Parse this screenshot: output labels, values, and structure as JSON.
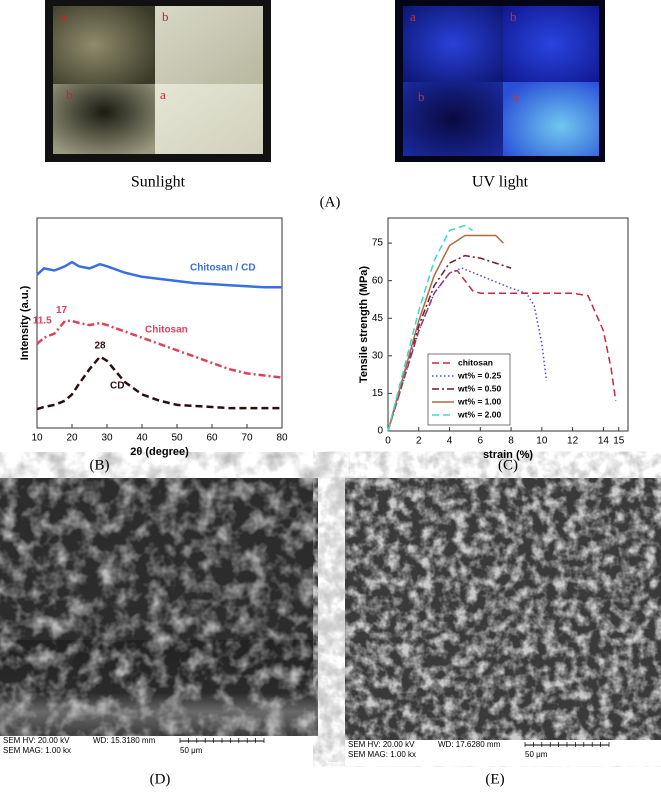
{
  "photo_panel": {
    "label": "(A)",
    "photos": [
      {
        "caption": "Sunlight",
        "labels": [
          "a",
          "b",
          "b",
          "a"
        ]
      },
      {
        "caption": "UV light",
        "labels": [
          "a",
          "b",
          "b",
          "a"
        ]
      }
    ]
  },
  "chart_data": [
    {
      "type": "line",
      "panel_label": "(B)",
      "x_label": "2θ (degree)",
      "y_label": "Intensity (a.u.)",
      "xlim": [
        10,
        80
      ],
      "xticks": [
        10,
        20,
        30,
        40,
        50,
        60,
        70,
        80
      ],
      "ylim": [
        0,
        100
      ],
      "series": [
        {
          "name": "Chitosan / CD",
          "color": "#3a6fe0",
          "style": "solid",
          "x": [
            10,
            12,
            15,
            18,
            20,
            22,
            25,
            28,
            30,
            35,
            40,
            45,
            50,
            55,
            60,
            65,
            70,
            75,
            80
          ],
          "values": [
            73,
            76,
            75,
            77,
            79,
            77,
            76,
            78,
            77,
            74,
            72,
            71,
            70,
            69,
            68.5,
            68,
            67.5,
            67,
            67
          ]
        },
        {
          "name": "Chitosan",
          "color": "#e0405a",
          "style": "dashdot",
          "x": [
            10,
            12,
            15,
            18,
            20,
            22,
            25,
            28,
            30,
            35,
            40,
            45,
            50,
            55,
            60,
            65,
            70,
            75,
            80
          ],
          "values": [
            40,
            43,
            45,
            51,
            51,
            50,
            49,
            50,
            49,
            46,
            43,
            40,
            37,
            34,
            31,
            28,
            26,
            25,
            24
          ]
        },
        {
          "name": "CD",
          "color": "#2a1010",
          "style": "dashed",
          "x": [
            10,
            12,
            15,
            18,
            20,
            22,
            25,
            28,
            30,
            35,
            40,
            45,
            50,
            55,
            60,
            65,
            70,
            75,
            80
          ],
          "values": [
            9,
            10,
            11,
            13,
            16,
            21,
            28,
            34,
            32,
            22,
            16,
            13,
            11,
            10.5,
            10,
            9.5,
            9.5,
            9.5,
            9.5
          ]
        }
      ],
      "annotations": [
        {
          "text": "11.5",
          "x": 11.5,
          "y": 51
        },
        {
          "text": "17",
          "x": 17,
          "y": 56
        },
        {
          "text": "28",
          "x": 28,
          "y": 39
        }
      ]
    },
    {
      "type": "line",
      "panel_label": "(C)",
      "x_label": "strain (%)",
      "y_label": "Tensile strength (MPa)",
      "xlim": [
        0,
        15.6
      ],
      "xticks": [
        0,
        2,
        4,
        6,
        8,
        10,
        12,
        14,
        15
      ],
      "ylim": [
        0,
        85
      ],
      "yticks": [
        0,
        15,
        30,
        45,
        60,
        75
      ],
      "legend": "lower left",
      "series": [
        {
          "name": "chitosan",
          "color": "#c8283c",
          "style": "dashed",
          "x": [
            0,
            1,
            2,
            3,
            4,
            4.5,
            5,
            5.5,
            6,
            8,
            10,
            12,
            13,
            14,
            14.5,
            14.8
          ],
          "values": [
            0,
            20,
            40,
            55,
            63,
            64,
            60,
            56,
            55,
            55,
            55,
            55,
            54,
            40,
            25,
            12
          ]
        },
        {
          "name": "wt% = 0.25",
          "color": "#4a4ad0",
          "style": "dotted",
          "x": [
            0,
            1,
            2,
            3,
            4,
            4.8,
            6,
            8,
            9,
            9.5,
            10,
            10.3
          ],
          "values": [
            0,
            20,
            40,
            55,
            63,
            65,
            62,
            57,
            55,
            50,
            35,
            20
          ]
        },
        {
          "name": "wt% = 0.50",
          "color": "#6a1a30",
          "style": "dashdot",
          "x": [
            0,
            1,
            2,
            3,
            4,
            5,
            6,
            7,
            8
          ],
          "values": [
            0,
            22,
            42,
            58,
            67,
            70,
            69,
            67,
            65
          ]
        },
        {
          "name": "wt% = 1.00",
          "color": "#b06a40",
          "style": "solid",
          "x": [
            0,
            1,
            2,
            3,
            4,
            5,
            6,
            7,
            7.5
          ],
          "values": [
            0,
            22,
            44,
            62,
            74,
            78,
            78,
            78,
            75
          ]
        },
        {
          "name": "wt% = 2.00",
          "color": "#40d8c8",
          "style": "dashed",
          "x": [
            0,
            1,
            2,
            3,
            4,
            5,
            5.5
          ],
          "values": [
            0,
            24,
            48,
            68,
            80,
            82,
            80
          ]
        }
      ]
    }
  ],
  "sem_images": [
    {
      "panel_label": "(D)",
      "hv": "SEM HV: 20.00 kV",
      "wd": "WD: 15.3180 mm",
      "mag": "SEM MAG: 1.00 kx",
      "scale": "50 μm"
    },
    {
      "panel_label": "(E)",
      "hv": "SEM HV: 20.00 kV",
      "wd": "WD: 17.6280 mm",
      "mag": "SEM MAG: 1.00 kx",
      "scale": "50 μm"
    }
  ]
}
